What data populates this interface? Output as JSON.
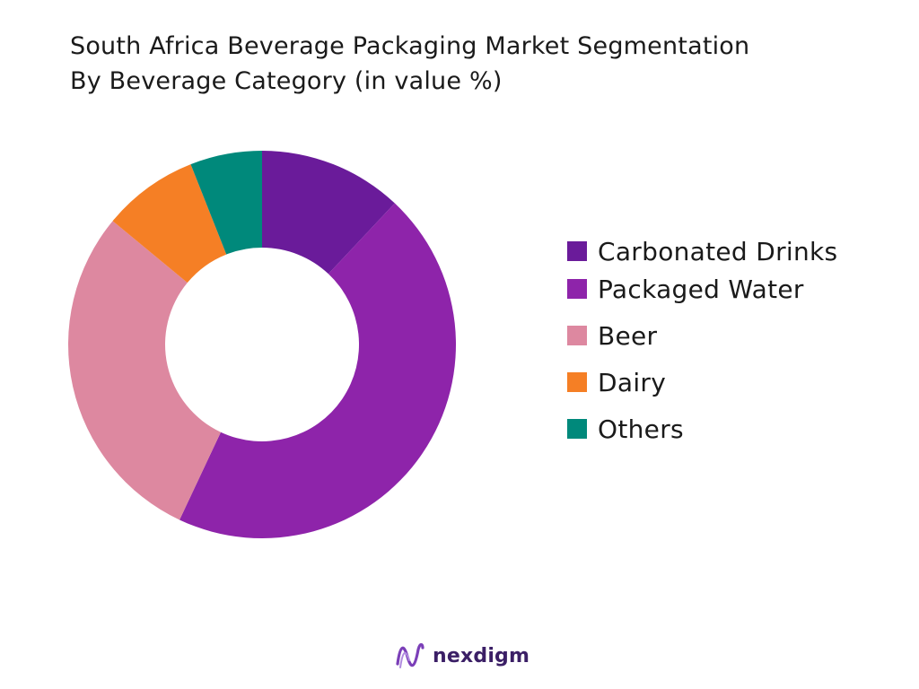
{
  "title_line1": "South Africa Beverage Packaging Market Segmentation",
  "title_line2": "By Beverage Category (in value %)",
  "brand": {
    "name": "nexdigm",
    "icon": "nexdigm-logo-icon"
  },
  "chart_data": {
    "type": "pie",
    "donut": true,
    "title": "South Africa Beverage Packaging Market Segmentation By Beverage Category (in value %)",
    "legend_position": "right",
    "series": [
      {
        "name": "Carbonated Drinks",
        "value": 12,
        "color": "#6a1b9a"
      },
      {
        "name": "Packaged Water",
        "value": 45,
        "color": "#8e24aa"
      },
      {
        "name": "Beer",
        "value": 29,
        "color": "#dd88a0"
      },
      {
        "name": "Dairy",
        "value": 8,
        "color": "#f57f25"
      },
      {
        "name": "Others",
        "value": 6,
        "color": "#00897b"
      }
    ]
  }
}
